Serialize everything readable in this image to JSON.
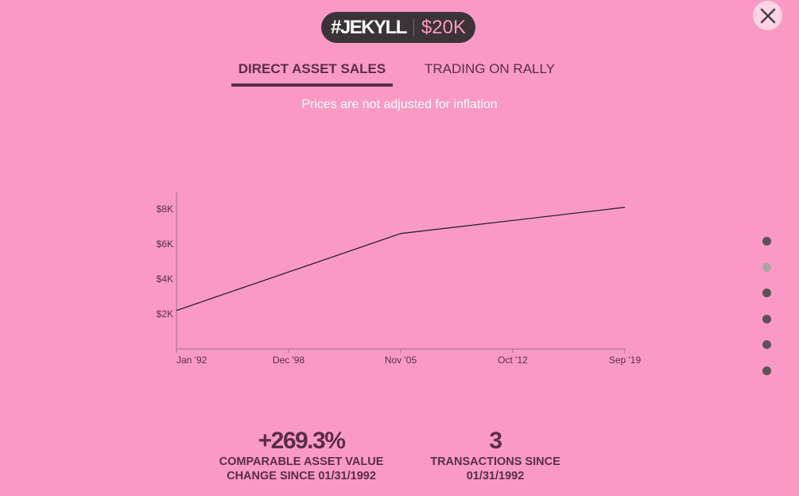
{
  "header": {
    "ticker": "#JEKYLL",
    "value": "$20K"
  },
  "tabs": [
    {
      "label": "DIRECT ASSET SALES",
      "active": true
    },
    {
      "label": "TRADING ON RALLY",
      "active": false
    }
  ],
  "note": "Prices are not adjusted for inflation",
  "chart_data": {
    "type": "line",
    "title": "",
    "xlabel": "",
    "ylabel": "",
    "x_ticks": [
      "Jan '92",
      "Dec '98",
      "Nov '05",
      "Oct '12",
      "Sep '19"
    ],
    "y_ticks": [
      "$2K",
      "$4K",
      "$6K",
      "$8K"
    ],
    "ylim": [
      0,
      9000
    ],
    "grid": false,
    "series": [
      {
        "x": [
          "1992-01",
          "2005-11",
          "2019-09"
        ],
        "values": [
          2200,
          6600,
          8100
        ]
      }
    ]
  },
  "pagination": {
    "count": 6,
    "active_index": 1
  },
  "stats": [
    {
      "value": "+269.3%",
      "label_line1": "COMPARABLE ASSET VALUE",
      "label_line2": "CHANGE SINCE 01/31/1992"
    },
    {
      "value": "3",
      "label_line1": "TRANSACTIONS SINCE",
      "label_line2": "01/31/1992"
    }
  ],
  "colors": {
    "background": "#fa9ac4",
    "text": "#5a2e44",
    "line": "#2b1f2a",
    "axis": "#9a6d85",
    "pill": "#3b3338",
    "dot": "#5b5357",
    "dot_active": "#a8a8a0"
  }
}
